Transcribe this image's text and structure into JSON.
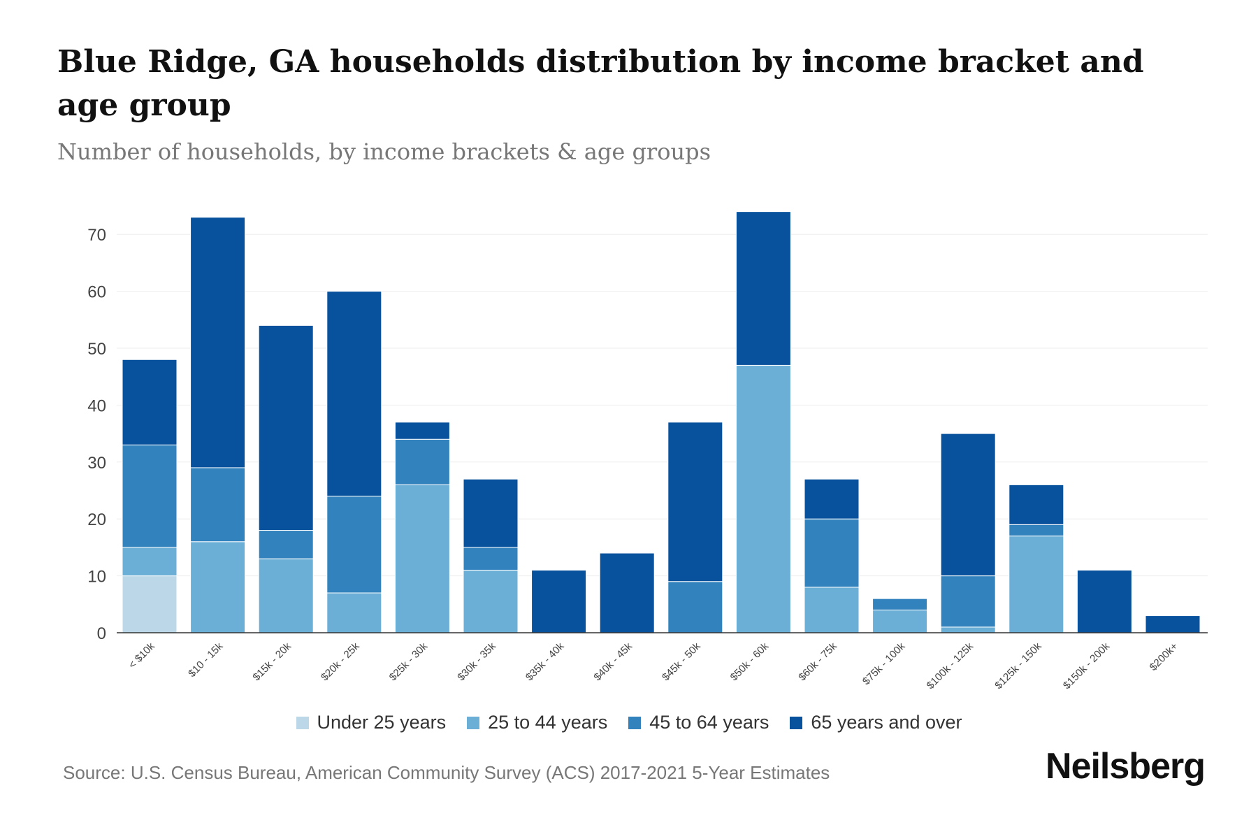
{
  "chart_data": {
    "type": "bar",
    "stacked": true,
    "title": "Blue Ridge, GA households distribution by income bracket and age group",
    "subtitle": "Number of households, by income brackets & age groups",
    "xlabel": "",
    "ylabel": "",
    "ylim": [
      0,
      75
    ],
    "yticks": [
      0,
      10,
      20,
      30,
      40,
      50,
      60,
      70
    ],
    "grid": true,
    "legend_position": "bottom",
    "categories": [
      "< $10k",
      "$10 - 15k",
      "$15k - 20k",
      "$20k - 25k",
      "$25k - 30k",
      "$30k - 35k",
      "$35k - 40k",
      "$40k - 45k",
      "$45k - 50k",
      "$50k - 60k",
      "$60k - 75k",
      "$75k - 100k",
      "$100k - 125k",
      "$125k - 150k",
      "$150k - 200k",
      "$200k+"
    ],
    "series": [
      {
        "name": "Under 25 years",
        "color": "#bcd8e8",
        "values": [
          10,
          0,
          0,
          0,
          0,
          0,
          0,
          0,
          0,
          0,
          0,
          0,
          0,
          0,
          0,
          0
        ]
      },
      {
        "name": "25 to 44 years",
        "color": "#6baed6",
        "values": [
          5,
          16,
          13,
          7,
          26,
          11,
          0,
          0,
          0,
          47,
          8,
          4,
          1,
          17,
          0,
          0
        ]
      },
      {
        "name": "45 to 64 years",
        "color": "#3182bd",
        "values": [
          18,
          13,
          5,
          17,
          8,
          4,
          0,
          0,
          9,
          0,
          12,
          2,
          9,
          2,
          0,
          0
        ]
      },
      {
        "name": "65 years and over",
        "color": "#08519c",
        "values": [
          15,
          44,
          36,
          36,
          3,
          12,
          11,
          14,
          28,
          27,
          7,
          0,
          25,
          7,
          11,
          3
        ]
      }
    ]
  },
  "source": "Source: U.S. Census Bureau, American Community Survey (ACS) 2017-2021 5-Year Estimates",
  "brand": "Neilsberg"
}
